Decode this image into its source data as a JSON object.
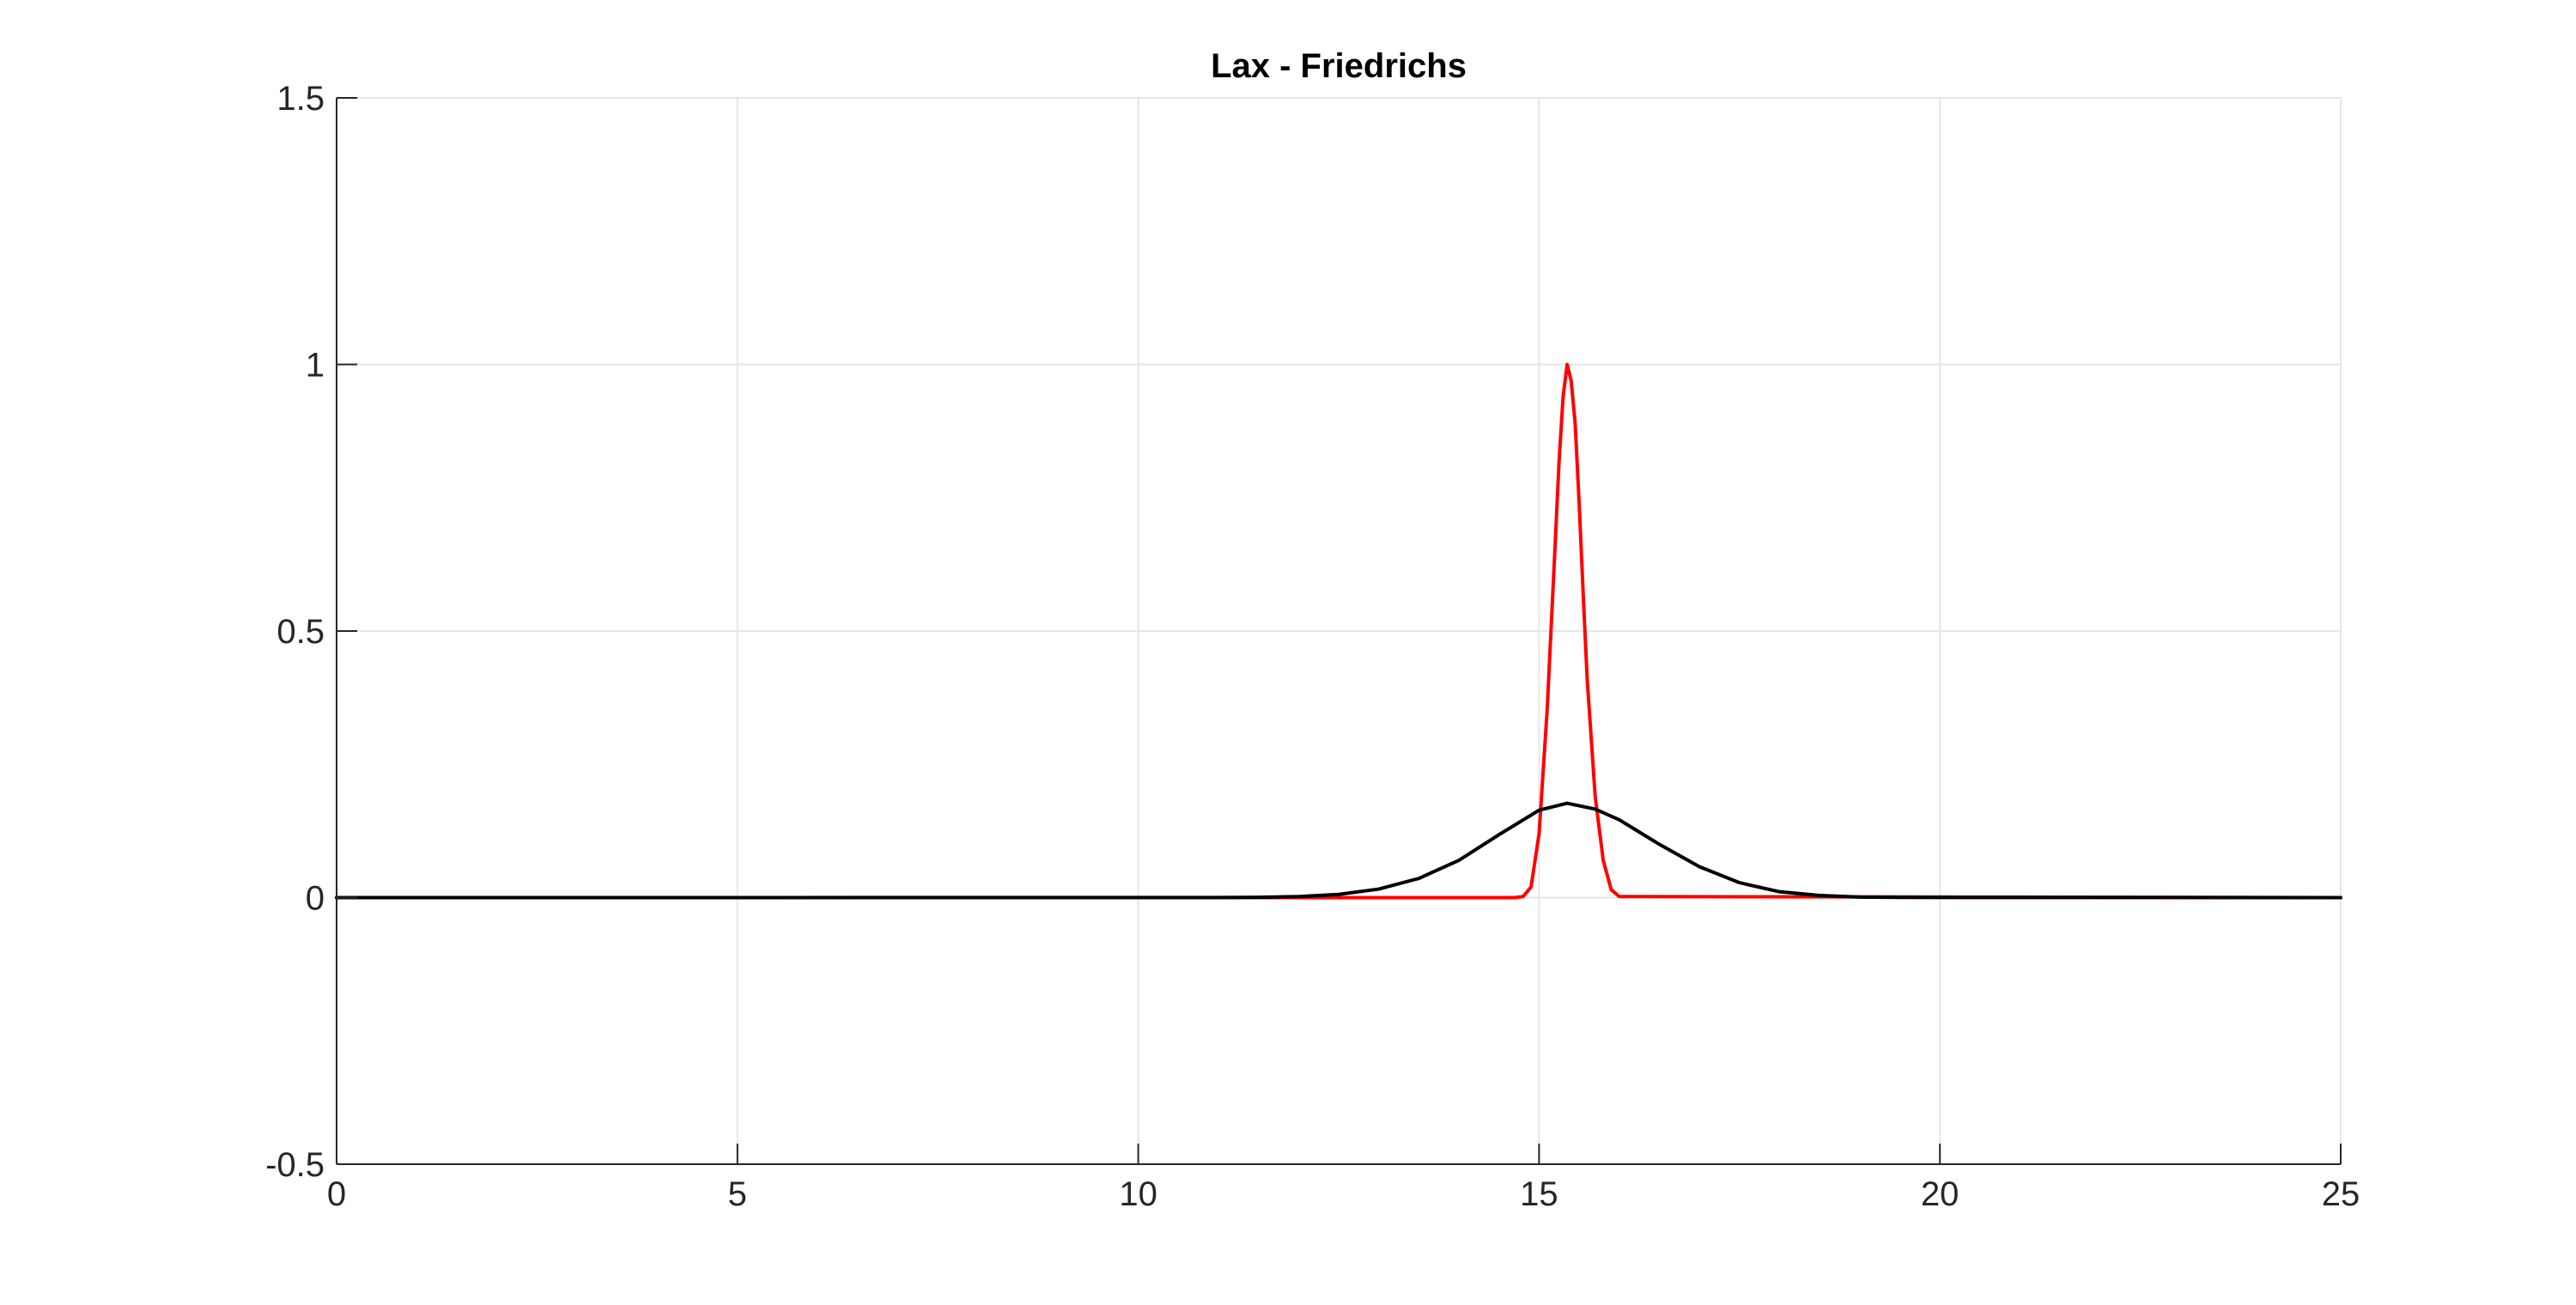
{
  "chart_data": {
    "type": "line",
    "title": "Lax - Friedrichs",
    "xlabel": "",
    "ylabel": "",
    "xlim": [
      0,
      25
    ],
    "ylim": [
      -0.5,
      1.5
    ],
    "xticks": [
      0,
      5,
      10,
      15,
      20,
      25
    ],
    "xtick_labels": [
      "0",
      "5",
      "10",
      "15",
      "20",
      "25"
    ],
    "yticks": [
      -0.5,
      0,
      0.5,
      1,
      1.5
    ],
    "ytick_labels": [
      "-0.5",
      "0",
      "0.5",
      "1",
      "1.5"
    ],
    "grid": true,
    "legend": "none",
    "colors": {
      "grid": "#e6e6e6",
      "axis": "#262626",
      "tick_text": "#262626",
      "title": "#000000"
    },
    "series": [
      {
        "color": "#ff0000",
        "line_width": 2,
        "x": [
          0,
          14.7,
          14.8,
          14.9,
          15.0,
          15.1,
          15.2,
          15.25,
          15.3,
          15.35,
          15.4,
          15.45,
          15.5,
          15.55,
          15.6,
          15.7,
          15.8,
          15.9,
          16.0,
          25
        ],
        "y": [
          0,
          0,
          0.002,
          0.02,
          0.12,
          0.35,
          0.66,
          0.82,
          0.94,
          1.0,
          0.97,
          0.89,
          0.74,
          0.57,
          0.41,
          0.19,
          0.07,
          0.015,
          0.002,
          0
        ]
      },
      {
        "color": "#000000",
        "line_width": 2,
        "x": [
          0,
          11.0,
          11.5,
          12.0,
          12.5,
          13.0,
          13.5,
          14.0,
          14.5,
          15.0,
          15.35,
          15.7,
          16.0,
          16.5,
          17.0,
          17.5,
          18.0,
          18.5,
          19.0,
          19.5,
          25
        ],
        "y": [
          0,
          0.0002,
          0.0007,
          0.002,
          0.006,
          0.016,
          0.036,
          0.07,
          0.118,
          0.164,
          0.177,
          0.166,
          0.146,
          0.1,
          0.058,
          0.028,
          0.011,
          0.004,
          0.001,
          0.0003,
          0
        ]
      }
    ]
  }
}
